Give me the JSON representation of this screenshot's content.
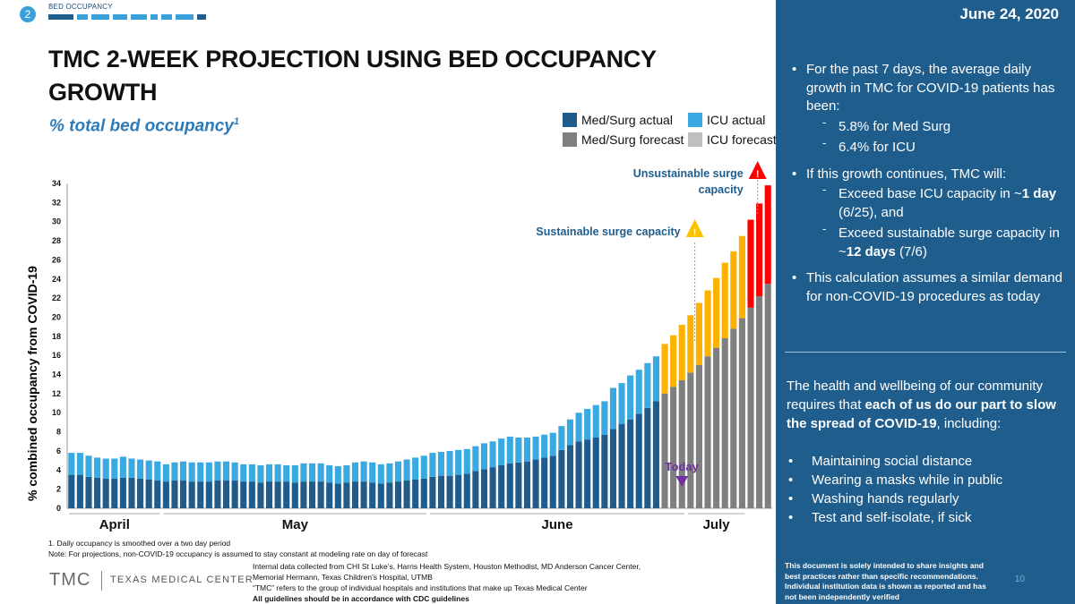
{
  "header": {
    "slide_number": "2",
    "section": "BED OCCUPANCY",
    "title": "TMC 2-WEEK PROJECTION USING BED OCCUPANCY GROWTH",
    "subtitle": "% total bed occupancy",
    "subtitle_sup": "1",
    "accent": "#3aa0dc"
  },
  "colors": {
    "med_surg_actual": "#1f5c8b",
    "icu_actual": "#3aa9e1",
    "med_surg_forecast": "#7f7f7f",
    "icu_forecast": "#bfbfbf",
    "orange_forecast": "#ffb100",
    "red_forecast": "#ff0000",
    "panel": "#1f5d8c",
    "today_marker": "#7030a0",
    "annotation_text": "#1f5d8c"
  },
  "legend": [
    {
      "label": "Med/Surg actual",
      "key": "med_surg_actual"
    },
    {
      "label": "ICU actual",
      "key": "icu_actual"
    },
    {
      "label": "Med/Surg forecast",
      "key": "med_surg_forecast"
    },
    {
      "label": "ICU forecast",
      "key": "icu_forecast"
    }
  ],
  "chart_data": {
    "type": "bar",
    "stacked": true,
    "title": "% total bed occupancy",
    "ylabel": "% combined occupancy from COVID-19",
    "xlabel": "",
    "ylim": [
      0,
      34
    ],
    "yticks": [
      0,
      2,
      4,
      6,
      8,
      10,
      12,
      14,
      16,
      18,
      20,
      22,
      24,
      26,
      28,
      30,
      32,
      34
    ],
    "month_labels": [
      {
        "label": "April",
        "start": 0,
        "end": 10
      },
      {
        "label": "May",
        "start": 11,
        "end": 41
      },
      {
        "label": "June",
        "start": 42,
        "end": 71
      },
      {
        "label": "July",
        "start": 72,
        "end": 78
      }
    ],
    "today_index": 71,
    "series": [
      {
        "name": "Med/Surg actual",
        "values": [
          3.5,
          3.5,
          3.3,
          3.2,
          3.1,
          3.1,
          3.2,
          3.2,
          3.1,
          3.0,
          2.9,
          2.8,
          2.9,
          2.9,
          2.8,
          2.8,
          2.8,
          2.9,
          2.9,
          2.9,
          2.8,
          2.8,
          2.7,
          2.8,
          2.8,
          2.8,
          2.7,
          2.8,
          2.8,
          2.8,
          2.7,
          2.6,
          2.7,
          2.8,
          2.8,
          2.7,
          2.6,
          2.7,
          2.8,
          2.9,
          3.0,
          3.1,
          3.3,
          3.4,
          3.4,
          3.5,
          3.6,
          3.9,
          4.1,
          4.3,
          4.5,
          4.7,
          4.8,
          4.9,
          5.1,
          5.3,
          5.5,
          6.1,
          6.6,
          7.0,
          7.2,
          7.4,
          7.7,
          8.3,
          8.8,
          9.3,
          9.9,
          10.5,
          11.2,
          null,
          null,
          null,
          null,
          null,
          null,
          null,
          null,
          null,
          null,
          null,
          null,
          null
        ]
      },
      {
        "name": "ICU actual",
        "values": [
          2.3,
          2.3,
          2.2,
          2.1,
          2.1,
          2.1,
          2.2,
          2.0,
          2.0,
          2.0,
          2.0,
          1.8,
          1.9,
          2.0,
          2.0,
          2.0,
          2.0,
          2.0,
          2.0,
          1.9,
          1.8,
          1.8,
          1.8,
          1.8,
          1.8,
          1.7,
          1.8,
          1.9,
          1.9,
          1.9,
          1.8,
          1.8,
          1.8,
          2.0,
          2.1,
          2.1,
          2.0,
          2.0,
          2.1,
          2.2,
          2.3,
          2.4,
          2.5,
          2.5,
          2.6,
          2.6,
          2.6,
          2.6,
          2.7,
          2.7,
          2.8,
          2.8,
          2.6,
          2.5,
          2.4,
          2.4,
          2.4,
          2.5,
          2.7,
          3.0,
          3.2,
          3.4,
          3.5,
          4.3,
          4.3,
          4.6,
          4.6,
          4.7,
          4.7,
          null,
          null,
          null,
          null,
          null,
          null,
          null,
          null,
          null,
          null,
          null,
          null,
          null
        ]
      },
      {
        "name": "Med/Surg forecast",
        "values": [
          null,
          null,
          null,
          null,
          null,
          null,
          null,
          null,
          null,
          null,
          null,
          null,
          null,
          null,
          null,
          null,
          null,
          null,
          null,
          null,
          null,
          null,
          null,
          null,
          null,
          null,
          null,
          null,
          null,
          null,
          null,
          null,
          null,
          null,
          null,
          null,
          null,
          null,
          null,
          null,
          null,
          null,
          null,
          null,
          null,
          null,
          null,
          null,
          null,
          null,
          null,
          null,
          null,
          null,
          null,
          null,
          null,
          null,
          null,
          null,
          null,
          null,
          null,
          null,
          null,
          null,
          null,
          null,
          null,
          12.0,
          12.7,
          13.4,
          14.2,
          15.0,
          15.9,
          16.8,
          17.8,
          18.8,
          19.9,
          21.0,
          22.2,
          23.5
        ]
      },
      {
        "name": "ICU forecast",
        "values": [
          null,
          null,
          null,
          null,
          null,
          null,
          null,
          null,
          null,
          null,
          null,
          null,
          null,
          null,
          null,
          null,
          null,
          null,
          null,
          null,
          null,
          null,
          null,
          null,
          null,
          null,
          null,
          null,
          null,
          null,
          null,
          null,
          null,
          null,
          null,
          null,
          null,
          null,
          null,
          null,
          null,
          null,
          null,
          null,
          null,
          null,
          null,
          null,
          null,
          null,
          null,
          null,
          null,
          null,
          null,
          null,
          null,
          null,
          null,
          null,
          null,
          null,
          null,
          null,
          null,
          null,
          null,
          null,
          null,
          5.2,
          5.4,
          5.8,
          6.0,
          6.5,
          6.9,
          7.3,
          7.9,
          8.1,
          8.6,
          9.2,
          9.7,
          10.3
        ]
      }
    ],
    "forecast_icu_colors": [
      "orange",
      "orange",
      "orange",
      "orange",
      "orange",
      "orange",
      "orange",
      "orange",
      "orange",
      "orange",
      "red",
      "red",
      "red"
    ],
    "annotations": [
      {
        "label": "Today",
        "index": 71
      },
      {
        "label": "Sustainable surge capacity",
        "index": 71
      },
      {
        "label": "Unsustainable surge capacity",
        "index": 79
      }
    ]
  },
  "annotation_text": {
    "today": "Today",
    "sustainable": "Sustainable surge capacity",
    "unsustainable_1": "Unsustainable surge",
    "unsustainable_2": "capacity",
    "warning_glyph": "!"
  },
  "footnotes": {
    "note1": "1.     Daily occupancy is smoothed over a two day period",
    "note2": "Note: For projections, non-COVID-19 occupancy is assumed to stay constant at modeling rate on day of forecast"
  },
  "logo": {
    "short": "TMC",
    "full": "TEXAS MEDICAL CENTER"
  },
  "source": {
    "line1": "Internal data collected from CHI St Luke’s, Harris Health System, Houston Methodist, MD Anderson Cancer Center,",
    "line2": "Memorial Hermann, Texas Children’s Hospital, UTMB",
    "line3": "“TMC” refers to the group of individual hospitals and institutions that make up Texas Medical Center",
    "line4": "All guidelines should be in accordance with CDC guidelines"
  },
  "panel": {
    "date": "June 24, 2020",
    "bullet1": "For the past 7 days, the average daily growth in TMC for COVID-19 patients has been:",
    "bullet1_sub1": "5.8% for Med Surg",
    "bullet1_sub2": "6.4% for ICU",
    "bullet2": "If this growth continues, TMC will:",
    "bullet2_sub1_a": "Exceed base ICU capacity in ~",
    "bullet2_sub1_b": "1 day",
    "bullet2_sub1_c": " (6/25), and",
    "bullet2_sub2_a": "Exceed sustainable surge capacity in ~",
    "bullet2_sub2_b": "12 days",
    "bullet2_sub2_c": " (7/6)",
    "bullet3": "This calculation assumes a similar demand for non-COVID-19 procedures as today",
    "health_a": "The health and wellbeing of our community requires that ",
    "health_b": "each of us do our part to slow the spread of COVID-19",
    "health_c": ", including:",
    "actions": [
      "Maintaining social distance",
      "Wearing a masks while in public",
      "Washing hands regularly",
      "Test and self-isolate, if sick"
    ],
    "disclaimer1": "This document is solely intended to share insights and best practices rather than specific recommendations.",
    "disclaimer2": "Individual institution data is shown as reported and has not been independently verified",
    "page": "10"
  }
}
